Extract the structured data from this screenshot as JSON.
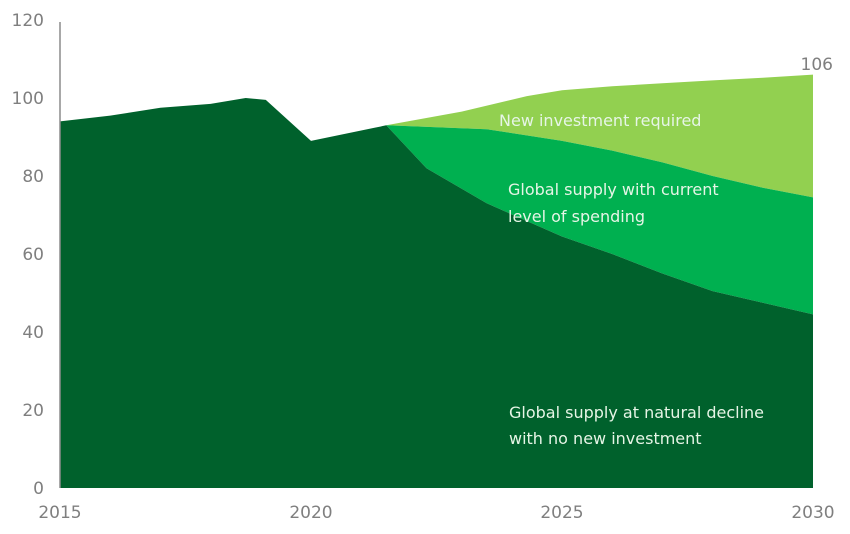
{
  "chart_data": {
    "type": "area",
    "title": "",
    "xlabel": "",
    "ylabel": "",
    "xlim": [
      2015,
      2030
    ],
    "ylim": [
      0,
      120
    ],
    "x_ticks": [
      2015,
      2020,
      2025,
      2030
    ],
    "y_ticks": [
      0,
      20,
      40,
      60,
      80,
      100,
      120
    ],
    "grid": false,
    "legend": "none",
    "series": [
      {
        "name": "Global supply at natural decline with no new investment",
        "color": "#00612c",
        "points": [
          [
            2015,
            94
          ],
          [
            2016,
            95.5
          ],
          [
            2017,
            97.5
          ],
          [
            2018,
            98.5
          ],
          [
            2018.7,
            100
          ],
          [
            2019.1,
            99.5
          ],
          [
            2020,
            89
          ],
          [
            2021.5,
            93
          ],
          [
            2022.3,
            82
          ],
          [
            2023.5,
            73
          ],
          [
            2025,
            64.5
          ],
          [
            2026,
            60
          ],
          [
            2027,
            55
          ],
          [
            2028,
            50.5
          ],
          [
            2029,
            47.5
          ],
          [
            2030,
            44.5
          ]
        ]
      },
      {
        "name": "Global supply with current level of spending",
        "color": "#00b050",
        "points": [
          [
            2021.5,
            93
          ],
          [
            2023.5,
            92
          ],
          [
            2025,
            89
          ],
          [
            2026,
            86.5
          ],
          [
            2027,
            83.5
          ],
          [
            2028,
            80
          ],
          [
            2029,
            77
          ],
          [
            2030,
            74.5
          ]
        ]
      },
      {
        "name": "New investment required",
        "color": "#92d050",
        "points": [
          [
            2021.5,
            93
          ],
          [
            2023,
            96.5
          ],
          [
            2024.3,
            100.5
          ],
          [
            2025,
            102
          ],
          [
            2026,
            103
          ],
          [
            2027,
            103.8
          ],
          [
            2028,
            104.5
          ],
          [
            2029,
            105.2
          ],
          [
            2030,
            106
          ]
        ]
      }
    ],
    "annotations": [
      {
        "text": "106",
        "x": 2030,
        "y": 106,
        "role": "end-value-label"
      },
      {
        "text": "New investment required",
        "series": "New investment required"
      },
      {
        "lines": [
          "Global supply with current",
          "level of spending"
        ],
        "series": "Global supply with current level of spending"
      },
      {
        "lines": [
          "Global supply at natural decline",
          "with no new investment"
        ],
        "series": "Global supply at natural decline with no new investment"
      }
    ]
  }
}
